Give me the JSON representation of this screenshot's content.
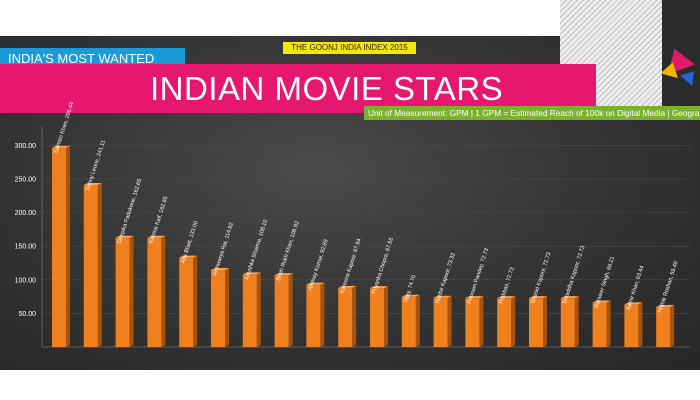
{
  "header": {
    "index_badge": "THE GOONJ INDIA INDEX 2015",
    "subtitle": "INDIA'S MOST WANTED",
    "title": "INDIAN MOVIE STARS",
    "unit_note": "Unit of Measurement: GPM | 1 GPM = Estimated Reach of 100k on Digital Media | Geography: India"
  },
  "colors": {
    "bar_orange": "#f07f1e",
    "title_pink": "#e6176f",
    "subtitle_blue": "#1a9bd7",
    "unit_green": "#7ab22e",
    "badge_yellow": "#f7e800"
  },
  "chart_data": {
    "type": "bar",
    "title": "INDIAN MOVIE STARS",
    "ylabel": "",
    "xlabel": "",
    "ylim": [
      0,
      320
    ],
    "yticks": [
      "",
      "50.00",
      "100.00",
      "150.00",
      "200.00",
      "250.00",
      "300.00"
    ],
    "ytick_values": [
      0,
      50,
      100,
      150,
      200,
      250,
      300
    ],
    "grid": true,
    "categories": [
      "Salman Khan",
      "Sunny Leone",
      "Deepika Padukone",
      "Katrina Kaif",
      "Alia Bhatt",
      "Aishwarya Rai",
      "Anushka Sharma",
      "Shah Rukh Khan",
      "Akshay Kumar",
      "Kareena Kapoor",
      "Priyanka Chopra",
      "Vijay",
      "Ranbir Kapoor",
      "Poonam Pandey",
      "Prabhas",
      "Shahid Kapoor",
      "Shraddha Kapoor",
      "Ranveer Singh",
      "Aamir Khan",
      "Hrithik Roshan"
    ],
    "values": [
      296.44,
      241.11,
      162.65,
      162.65,
      133.0,
      114.62,
      108.1,
      106.92,
      92.89,
      87.94,
      87.55,
      74.7,
      73.32,
      72.73,
      72.73,
      72.73,
      72.73,
      66.21,
      63.44,
      59.49
    ],
    "data_labels": [
      "Salman Khan, 296.44",
      "Sunny Leone, 241.11",
      "Deepika Padukone, 162.65",
      "Katrina Kaif, 162.65",
      "Alia Bhatt, 133.00",
      "Aishwarya Rai, 114.62",
      "Anushka Sharma, 108.10",
      "Shah Rukh Khan, 106.92",
      "Akshay Kumar, 92.89",
      "Kareena Kapoor, 87.94",
      "Priyanka Chopra, 87.55",
      "Vijay, 74.70",
      "Ranbir Kapoor, 73.32",
      "Poonam Pandey, 72.73",
      "Prabhas, 72.73",
      "Shahid Kapoor, 72.73",
      "Shraddha Kapoor, 72.73",
      "Ranveer Singh, 66.21",
      "Aamir Khan, 63.44",
      "Hrithik Roshan, 59.49"
    ]
  }
}
